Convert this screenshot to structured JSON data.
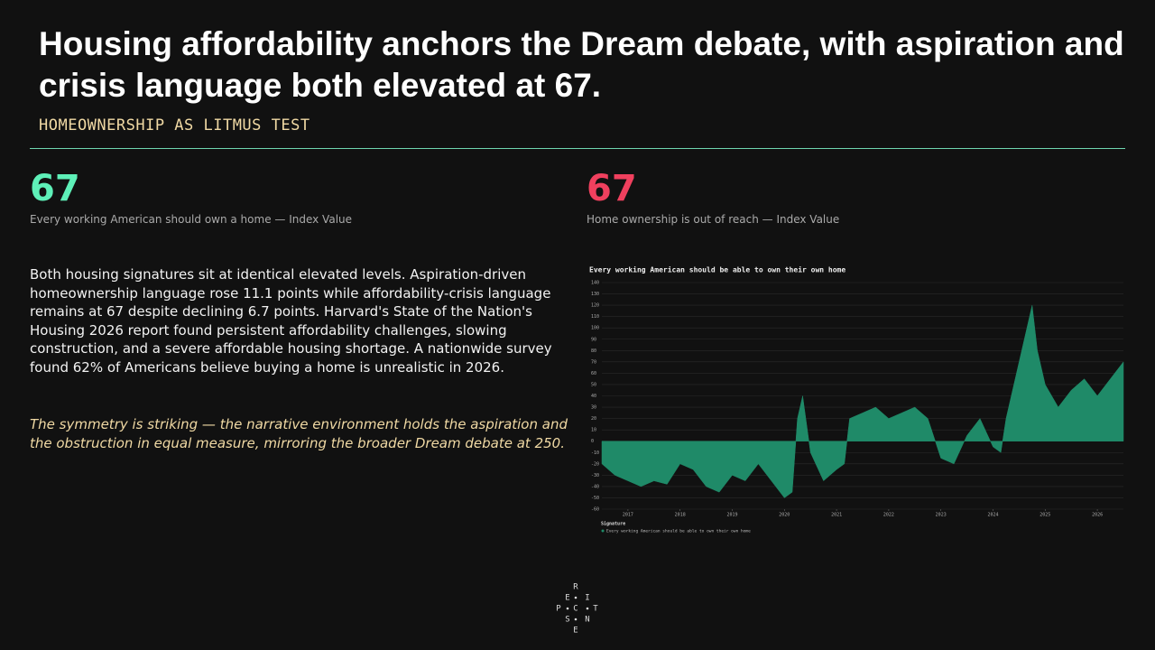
{
  "header": {
    "title": "Housing affordability anchors the Dream debate, with aspiration and crisis language both elevated at 67.",
    "subtitle": "HOMEOWNERSHIP AS LITMUS TEST"
  },
  "metrics": [
    {
      "value": 67,
      "label": "Every working American should own a home — Index Value"
    },
    {
      "value": 67,
      "label": "Home ownership is out of reach — Index Value"
    }
  ],
  "body": {
    "paragraph": "Both housing signatures sit at identical elevated levels. Aspiration-driven homeownership language rose 11.1 points while affordability-crisis language remains at 67 despite declining 6.7 points. Harvard's State of the Nation's Housing 2026 report found persistent affordability challenges, slowing construction, and a severe affordable housing shortage. A nationwide survey found 62% of Americans believe buying a home is unrealistic in 2026.",
    "quote": "The symmetry is striking — the narrative environment holds the aspiration and the obstruction in equal measure, mirroring the broader Dream debate at 250."
  },
  "chart_data": {
    "type": "area",
    "title": "Every working American should be able to own their own home",
    "x": [
      2016.5,
      2016.75,
      2017.0,
      2017.25,
      2017.5,
      2017.75,
      2018.0,
      2018.25,
      2018.5,
      2018.75,
      2019.0,
      2019.25,
      2019.5,
      2019.75,
      2020.0,
      2020.15,
      2020.25,
      2020.35,
      2020.5,
      2020.75,
      2021.0,
      2021.15,
      2021.25,
      2021.5,
      2021.75,
      2022.0,
      2022.25,
      2022.5,
      2022.75,
      2023.0,
      2023.25,
      2023.5,
      2023.75,
      2024.0,
      2024.15,
      2024.25,
      2024.5,
      2024.75,
      2024.85,
      2025.0,
      2025.25,
      2025.5,
      2025.75,
      2026.0,
      2026.25,
      2026.5
    ],
    "series": [
      {
        "name": "Every working American should be able to own their own home",
        "color": "#1f8a68",
        "values": [
          -20,
          -30,
          -35,
          -40,
          -35,
          -38,
          -20,
          -25,
          -40,
          -45,
          -30,
          -35,
          -20,
          -35,
          -50,
          -45,
          20,
          40,
          -10,
          -35,
          -25,
          -20,
          20,
          25,
          30,
          20,
          25,
          30,
          20,
          -15,
          -20,
          5,
          20,
          -5,
          -10,
          20,
          70,
          120,
          80,
          50,
          30,
          45,
          55,
          40,
          55,
          70
        ]
      }
    ],
    "xlim": [
      2016.5,
      2026.5
    ],
    "xticks": [
      2017,
      2018,
      2019,
      2020,
      2021,
      2022,
      2023,
      2024,
      2025,
      2026
    ],
    "ylim": [
      -60,
      140
    ],
    "yticks": [
      -60,
      -50,
      -40,
      -30,
      -20,
      -10,
      0,
      10,
      20,
      30,
      40,
      50,
      60,
      70,
      80,
      90,
      100,
      110,
      120,
      130,
      140
    ],
    "grid": true,
    "legend_title": "Signature"
  },
  "logo": [
    "R",
    "E",
    "I",
    "P",
    "C",
    "T",
    "S",
    "N",
    "E"
  ]
}
